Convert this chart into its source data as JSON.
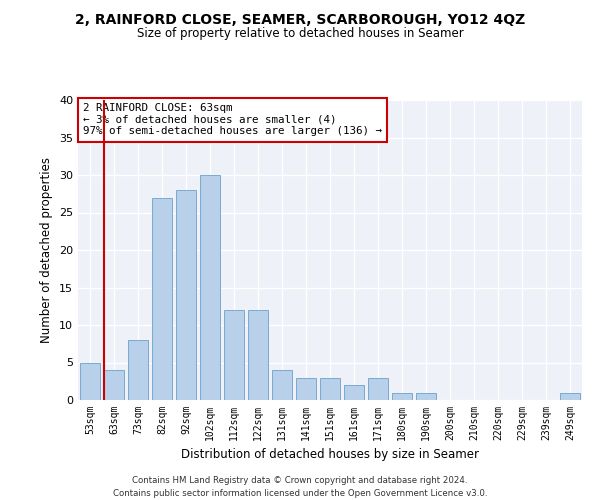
{
  "title": "2, RAINFORD CLOSE, SEAMER, SCARBOROUGH, YO12 4QZ",
  "subtitle": "Size of property relative to detached houses in Seamer",
  "xlabel": "Distribution of detached houses by size in Seamer",
  "ylabel": "Number of detached properties",
  "footnote1": "Contains HM Land Registry data © Crown copyright and database right 2024.",
  "footnote2": "Contains public sector information licensed under the Open Government Licence v3.0.",
  "annotation_line1": "2 RAINFORD CLOSE: 63sqm",
  "annotation_line2": "← 3% of detached houses are smaller (4)",
  "annotation_line3": "97% of semi-detached houses are larger (136) →",
  "bar_color": "#b8d0ea",
  "bar_edge_color": "#7aaad0",
  "vline_color": "#cc0000",
  "vline_index": 1,
  "categories": [
    "53sqm",
    "63sqm",
    "73sqm",
    "82sqm",
    "92sqm",
    "102sqm",
    "112sqm",
    "122sqm",
    "131sqm",
    "141sqm",
    "151sqm",
    "161sqm",
    "171sqm",
    "180sqm",
    "190sqm",
    "200sqm",
    "210sqm",
    "220sqm",
    "229sqm",
    "239sqm",
    "249sqm"
  ],
  "values": [
    5,
    4,
    8,
    27,
    28,
    30,
    12,
    12,
    4,
    3,
    3,
    2,
    3,
    1,
    1,
    0,
    0,
    0,
    0,
    0,
    1
  ],
  "ylim": [
    0,
    40
  ],
  "yticks": [
    0,
    5,
    10,
    15,
    20,
    25,
    30,
    35,
    40
  ],
  "figsize": [
    6.0,
    5.0
  ],
  "dpi": 100
}
